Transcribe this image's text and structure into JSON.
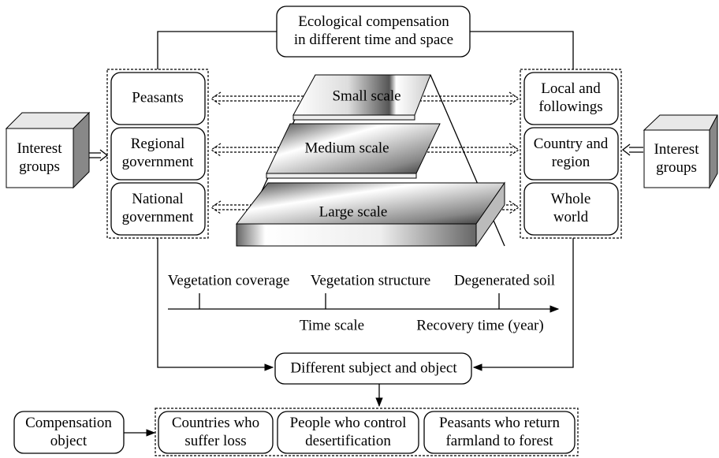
{
  "title": {
    "lines": [
      "Ecological compensation",
      "in different time and space"
    ]
  },
  "left_interest": {
    "lines": [
      "Interest",
      "groups"
    ]
  },
  "right_interest": {
    "lines": [
      "Interest",
      "groups"
    ]
  },
  "left_boxes": [
    {
      "lines": [
        "Peasants"
      ]
    },
    {
      "lines": [
        "Regional",
        "government"
      ]
    },
    {
      "lines": [
        "National",
        "government"
      ]
    }
  ],
  "right_boxes": [
    {
      "lines": [
        "Local and",
        "followings"
      ]
    },
    {
      "lines": [
        "Country and",
        "region"
      ]
    },
    {
      "lines": [
        "Whole",
        "world"
      ]
    }
  ],
  "scales": [
    "Small scale",
    "Medium scale",
    "Large scale"
  ],
  "timeline": {
    "stages": [
      "Vegetation coverage",
      "Vegetation structure",
      "Degenerated soil"
    ],
    "axis_label": "Time scale",
    "end_label": "Recovery time (year)"
  },
  "subject_object": "Different subject and object",
  "compensation": {
    "label": {
      "lines": [
        "Compensation",
        "object"
      ]
    },
    "objects": [
      {
        "lines": [
          "Countries who",
          "suffer loss"
        ]
      },
      {
        "lines": [
          "People who control",
          "desertification"
        ]
      },
      {
        "lines": [
          "Peasants who return",
          "farmland to forest"
        ]
      }
    ]
  }
}
